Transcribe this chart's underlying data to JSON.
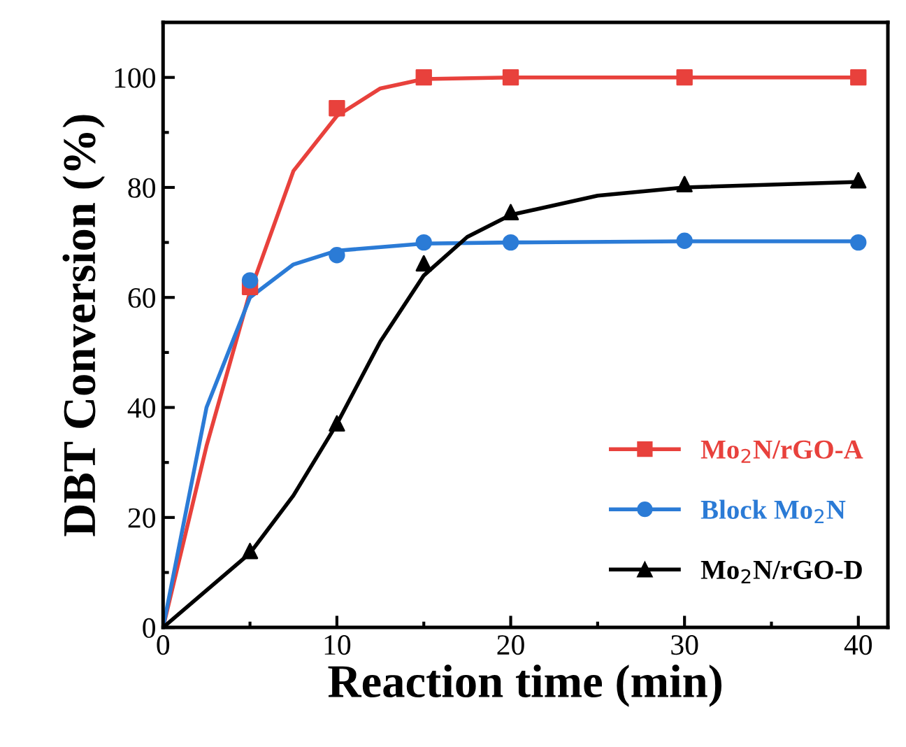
{
  "chart_data": {
    "type": "scatter",
    "xlabel": "Reaction time (min)",
    "ylabel": "DBT Conversion (%)",
    "xlim": [
      0,
      41.7
    ],
    "ylim": [
      0,
      110
    ],
    "xticks": [
      0,
      10,
      20,
      30,
      40
    ],
    "yticks": [
      0,
      20,
      40,
      60,
      80,
      100
    ],
    "grid": false,
    "legend": "bottom right",
    "series": [
      {
        "type": "line",
        "color": "#e8413c",
        "x": [
          0,
          2.5,
          5,
          7.5,
          10,
          12.5,
          15,
          20,
          30,
          40
        ],
        "values": [
          0,
          33,
          61,
          83,
          93,
          98,
          99.7,
          100,
          100,
          100
        ]
      },
      {
        "type": "line",
        "color": "#2b7bd6",
        "x": [
          0,
          2.5,
          5,
          7.5,
          10,
          15,
          20,
          30,
          40
        ],
        "values": [
          0,
          40,
          60,
          66,
          68.5,
          69.8,
          70,
          70.2,
          70.2
        ]
      },
      {
        "type": "line",
        "color": "#000000",
        "x": [
          0,
          5,
          7.5,
          10,
          12.5,
          15,
          17.5,
          20,
          25,
          30,
          40
        ],
        "values": [
          0,
          13.5,
          24,
          37,
          52,
          64,
          71,
          75,
          78.5,
          80,
          81
        ]
      },
      {
        "name": "Mo$_{2}$N/rGO-A",
        "color": "#e8413c",
        "marker": "square",
        "x": [
          5,
          10,
          15,
          20,
          30,
          40
        ],
        "values": [
          61.9,
          94.4,
          100,
          100,
          100,
          100
        ]
      },
      {
        "name": "Block Mo$_{2}$N",
        "color": "#2b7bd6",
        "marker": "circle",
        "x": [
          5,
          10,
          15,
          20,
          30,
          40
        ],
        "values": [
          63.1,
          67.7,
          70,
          70,
          70.3,
          70
        ]
      },
      {
        "name": "Mo$_{2}$N/rGO-D",
        "color": "#000000",
        "marker": "triangle",
        "x": [
          5,
          10,
          15,
          20,
          30,
          40
        ],
        "values": [
          13.9,
          37.1,
          66.2,
          75.5,
          80.6,
          81.3
        ]
      }
    ]
  }
}
